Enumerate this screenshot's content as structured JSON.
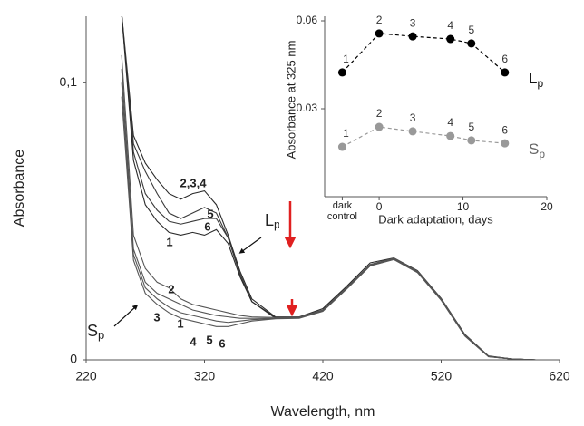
{
  "chart_data": [
    {
      "type": "line",
      "xlabel": "Wavelength, nm",
      "ylabel": "Absorbance",
      "xlim": [
        220,
        620
      ],
      "xticks": [
        220,
        320,
        420,
        520,
        620
      ],
      "ylim": [
        0,
        0.124
      ],
      "yticks": [
        0,
        {
          "value": 0.1,
          "label": "0,1"
        }
      ],
      "x": [
        250,
        260,
        270,
        280,
        290,
        300,
        310,
        320,
        330,
        340,
        350,
        360,
        380,
        400,
        420,
        440,
        460,
        480,
        500,
        520,
        540,
        560,
        580,
        600,
        620
      ],
      "series": [
        {
          "color": "#2a2a2a",
          "values": [
            0.125,
            0.081,
            0.071,
            0.065,
            0.06,
            0.058,
            0.06,
            0.061,
            0.056,
            0.045,
            0.032,
            0.022,
            0.0155,
            0.0155,
            0.0185,
            0.0265,
            0.035,
            0.0368,
            0.0322,
            0.0222,
            0.0092,
            0.0014,
            0.0003,
            0,
            0
          ]
        },
        {
          "color": "#3a3a3a",
          "values": [
            0.125,
            0.078,
            0.068,
            0.06,
            0.053,
            0.051,
            0.053,
            0.055,
            0.053,
            0.044,
            0.031,
            0.021,
            0.0154,
            0.0154,
            0.018,
            0.026,
            0.0344,
            0.0367,
            0.032,
            0.022,
            0.009,
            0.0013,
            0.0003,
            0,
            0
          ]
        },
        {
          "color": "#3a3a3a",
          "values": [
            0.125,
            0.075,
            0.06,
            0.054,
            0.05,
            0.049,
            0.05,
            0.051,
            0.051,
            0.044,
            0.031,
            0.021,
            0.015,
            0.0152,
            0.0178,
            0.0258,
            0.0342,
            0.0365,
            0.0318,
            0.0218,
            0.0088,
            0.0012,
            0.0003,
            0,
            0
          ]
        },
        {
          "color": "#2a2a2a",
          "values": [
            0.125,
            0.072,
            0.056,
            0.05,
            0.046,
            0.045,
            0.046,
            0.045,
            0.047,
            0.042,
            0.03,
            0.021,
            0.0152,
            0.0153,
            0.0179,
            0.0259,
            0.0343,
            0.0366,
            0.0319,
            0.0219,
            0.0089,
            0.0012,
            0.0003,
            0,
            0
          ]
        },
        {
          "color": "#555555",
          "values": [
            0.11,
            0.045,
            0.033,
            0.028,
            0.026,
            0.022,
            0.02,
            0.019,
            0.018,
            0.017,
            0.016,
            0.0155,
            0.0153,
            0.0154,
            0.018,
            0.026,
            0.0344,
            0.0367,
            0.032,
            0.022,
            0.009,
            0.0013,
            0.0003,
            0,
            0
          ]
        },
        {
          "color": "#555555",
          "values": [
            0.105,
            0.04,
            0.028,
            0.024,
            0.022,
            0.02,
            0.018,
            0.017,
            0.016,
            0.0155,
            0.015,
            0.015,
            0.015,
            0.0152,
            0.0177,
            0.0257,
            0.0341,
            0.0364,
            0.0317,
            0.0217,
            0.0088,
            0.0012,
            0.0003,
            0,
            0
          ]
        },
        {
          "color": "#555555",
          "values": [
            0.1,
            0.038,
            0.026,
            0.022,
            0.019,
            0.017,
            0.016,
            0.015,
            0.014,
            0.0135,
            0.014,
            0.0145,
            0.0149,
            0.0151,
            0.0176,
            0.0256,
            0.034,
            0.0363,
            0.0316,
            0.0216,
            0.0087,
            0.0012,
            0.0003,
            0,
            0
          ]
        },
        {
          "color": "#555555",
          "values": [
            0.095,
            0.036,
            0.024,
            0.02,
            0.017,
            0.015,
            0.014,
            0.013,
            0.012,
            0.012,
            0.013,
            0.014,
            0.0148,
            0.015,
            0.0175,
            0.0255,
            0.0339,
            0.0362,
            0.0315,
            0.0215,
            0.0086,
            0.0011,
            0.0003,
            0,
            0
          ]
        }
      ],
      "annotations": [
        {
          "text": "2,3,4"
        },
        {
          "text": "5"
        },
        {
          "text": "6"
        },
        {
          "text": "1"
        },
        {
          "text": "L",
          "sub": "p"
        },
        {
          "text": "2"
        },
        {
          "text": "3"
        },
        {
          "text": "1"
        },
        {
          "text": "4"
        },
        {
          "text": "5"
        },
        {
          "text": "6"
        },
        {
          "text": "S",
          "sub": "p"
        }
      ]
    },
    {
      "type": "line",
      "xlabel": "Dark adaptation, days",
      "ylabel": "Absorbance at 325 nm",
      "xlim": [
        -6.5,
        20
      ],
      "xticks": [
        {
          "value": -4.4,
          "label": "dark control"
        },
        0,
        10,
        20
      ],
      "ylim": [
        0,
        0.06
      ],
      "yticks": [
        0.03,
        0.06
      ],
      "x": [
        -4.4,
        0,
        4,
        8.5,
        11,
        15
      ],
      "series": [
        {
          "label": "L",
          "label_sub": "p",
          "color": "#000000",
          "line_style": "dashed",
          "values": [
            0.0424,
            0.0557,
            0.0547,
            0.0538,
            0.0523,
            0.0424
          ],
          "value_labels": [
            "1",
            "2",
            "3",
            "4",
            "5",
            "6"
          ]
        },
        {
          "label": "S",
          "label_sub": "p",
          "color": "#999999",
          "line_style": "dashed",
          "values": [
            0.017,
            0.0238,
            0.0223,
            0.0207,
            0.0192,
            0.0182
          ],
          "value_labels": [
            "1",
            "2",
            "3",
            "4",
            "5",
            "6"
          ]
        }
      ]
    }
  ]
}
